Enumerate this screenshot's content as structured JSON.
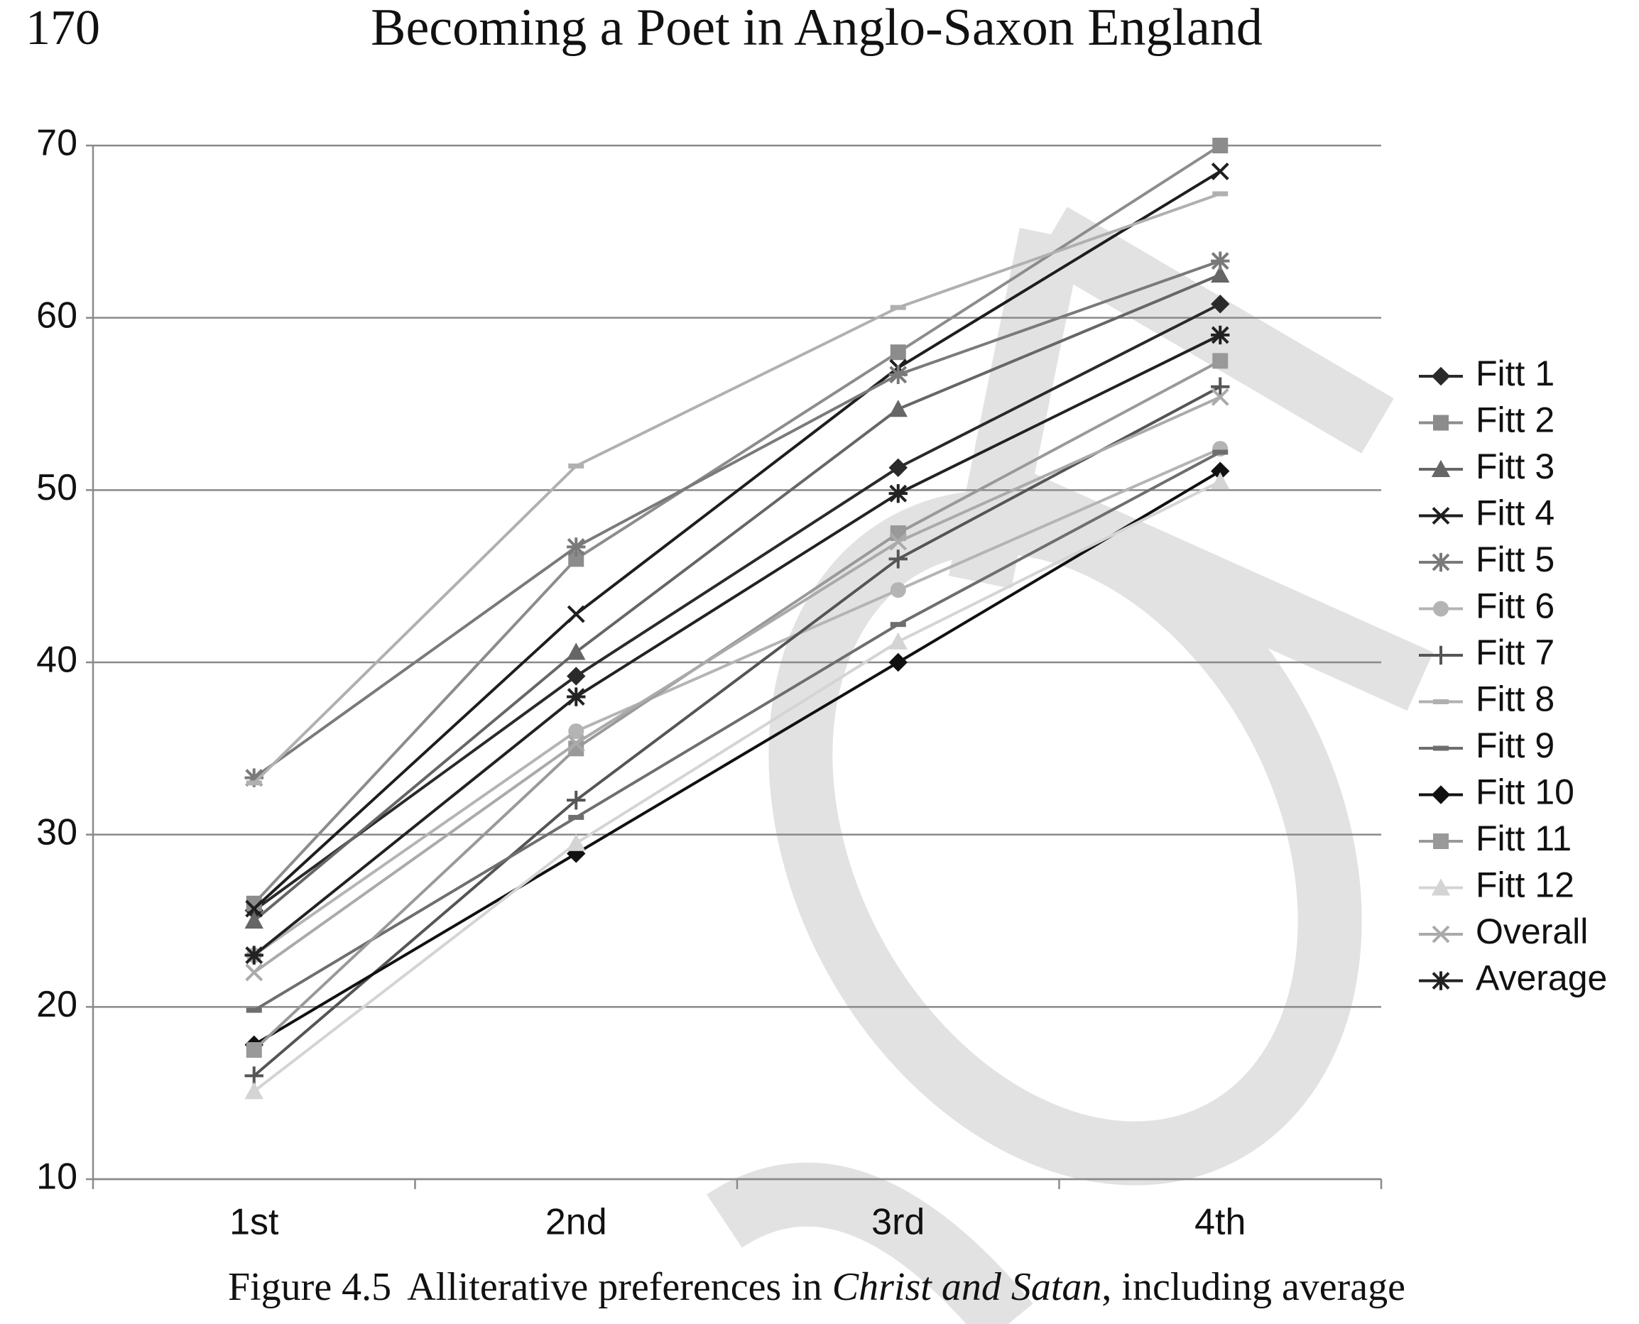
{
  "page_number": "170",
  "running_head": "Becoming a Poet in Anglo-Saxon England",
  "caption": {
    "label": "Figure 4.5",
    "text_before": "Alliterative preferences in ",
    "italic": "Christ and Satan",
    "text_after": ", including average"
  },
  "chart_data": {
    "type": "line",
    "categories": [
      "1st",
      "2nd",
      "3rd",
      "4th"
    ],
    "ylim": [
      10,
      70
    ],
    "yticks": [
      10,
      20,
      30,
      40,
      50,
      60,
      70
    ],
    "grid": true,
    "legend": "right",
    "series": [
      {
        "name": "Fitt 1",
        "color": "#2a2a2a",
        "marker": "diamond",
        "values": [
          25.6,
          39.2,
          51.3,
          60.8
        ]
      },
      {
        "name": "Fitt 2",
        "color": "#8c8c8c",
        "marker": "square",
        "values": [
          26,
          46,
          58,
          70
        ]
      },
      {
        "name": "Fitt 3",
        "color": "#666666",
        "marker": "triangle",
        "values": [
          25,
          40.6,
          54.7,
          62.5
        ]
      },
      {
        "name": "Fitt 4",
        "color": "#1e1e1e",
        "marker": "x",
        "values": [
          25.7,
          42.8,
          57.1,
          68.5
        ]
      },
      {
        "name": "Fitt 5",
        "color": "#7a7a7a",
        "marker": "asterisk",
        "values": [
          33.3,
          46.7,
          56.7,
          63.3
        ]
      },
      {
        "name": "Fitt 6",
        "color": "#b4b4b4",
        "marker": "circle",
        "values": [
          23,
          36,
          44.2,
          52.4
        ]
      },
      {
        "name": "Fitt 7",
        "color": "#555555",
        "marker": "plus",
        "values": [
          16,
          32,
          46,
          56
        ]
      },
      {
        "name": "Fitt 8",
        "color": "#b0b0b0",
        "marker": "dash",
        "values": [
          33,
          51.4,
          60.6,
          67.2
        ]
      },
      {
        "name": "Fitt 9",
        "color": "#6e6e6e",
        "marker": "dash",
        "values": [
          19.8,
          31,
          42.2,
          52.2
        ]
      },
      {
        "name": "Fitt 10",
        "color": "#111111",
        "marker": "diamond",
        "values": [
          17.8,
          28.9,
          40,
          51.1
        ]
      },
      {
        "name": "Fitt 11",
        "color": "#999999",
        "marker": "square",
        "values": [
          17.5,
          35,
          47.5,
          57.5
        ]
      },
      {
        "name": "Fitt 12",
        "color": "#d4d4d4",
        "marker": "triangle",
        "values": [
          15.1,
          29.5,
          41.2,
          50.5
        ]
      },
      {
        "name": "Overall",
        "color": "#aaaaaa",
        "marker": "x",
        "values": [
          22,
          35.3,
          47,
          55.4
        ]
      },
      {
        "name": "Average",
        "color": "#222222",
        "marker": "asterisk",
        "values": [
          23,
          38,
          49.8,
          59
        ]
      }
    ]
  }
}
